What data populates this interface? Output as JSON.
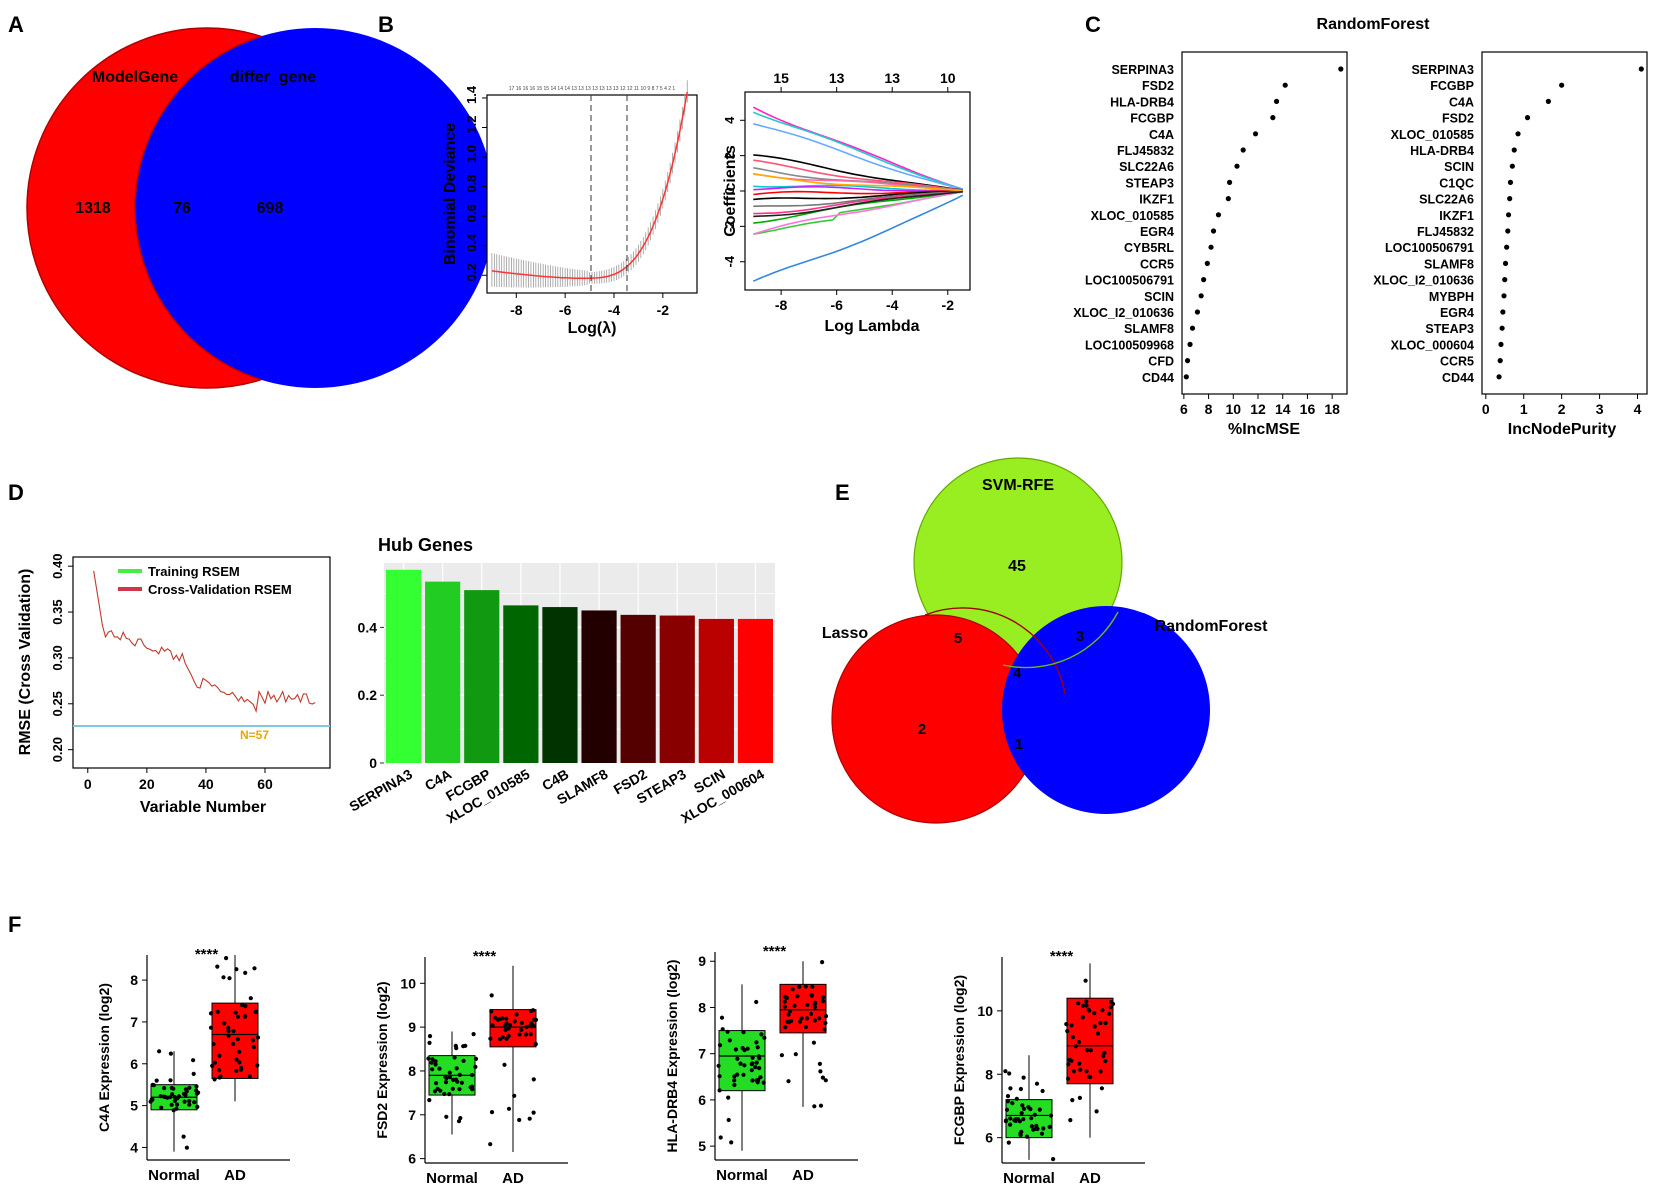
{
  "panels": {
    "A": {
      "label": "A",
      "venn": {
        "left_name": "ModelGene",
        "right_name": "differ_gene",
        "left_only": "1318",
        "overlap": "76",
        "right_only": "698",
        "colors": {
          "left": "#ff0000",
          "right": "#0000ff"
        }
      }
    },
    "B": {
      "label": "B",
      "cv_plot": {
        "ylabel": "Binomial Deviance",
        "xlabel": "Log(λ)",
        "yticks": [
          "0.2",
          "0.4",
          "0.6",
          "0.8",
          "1.0",
          "1.2",
          "1.4"
        ],
        "xticks": [
          "-8",
          "-6",
          "-4",
          "-2"
        ],
        "top_counts": "17 16 16 16 15 15 14 14 14 13 13 13 13 13 13 13 12 12 11 10 9 8 7 5 4 2 1"
      },
      "path_plot": {
        "ylabel": "Coefficients",
        "xlabel": "Log Lambda",
        "top_ticks": [
          "15",
          "13",
          "13",
          "10"
        ],
        "yticks": [
          "-4",
          "-2",
          "0",
          "2",
          "4"
        ],
        "xticks": [
          "-8",
          "-6",
          "-4",
          "-2"
        ]
      }
    },
    "C": {
      "label": "C",
      "title": "RandomForest",
      "left": {
        "xlabel": "%IncMSE",
        "xticks": [
          "6",
          "8",
          "10",
          "12",
          "14",
          "16",
          "18"
        ],
        "genes": [
          "SERPINA3",
          "FSD2",
          "HLA-DRB4",
          "FCGBP",
          "C4A",
          "FLJ45832",
          "SLC22A6",
          "STEAP3",
          "IKZF1",
          "XLOC_010585",
          "EGR4",
          "CYB5RL",
          "CCR5",
          "LOC100506791",
          "SCIN",
          "XLOC_I2_010636",
          "SLAMF8",
          "LOC100509968",
          "CFD",
          "CD44"
        ],
        "values": [
          18.7,
          14.2,
          13.5,
          13.2,
          11.8,
          10.8,
          10.3,
          9.7,
          9.6,
          8.8,
          8.4,
          8.2,
          7.9,
          7.6,
          7.4,
          7.1,
          6.7,
          6.5,
          6.3,
          6.2
        ]
      },
      "right": {
        "xlabel": "IncNodePurity",
        "xticks": [
          "0",
          "1",
          "2",
          "3",
          "4"
        ],
        "genes": [
          "SERPINA3",
          "FCGBP",
          "C4A",
          "FSD2",
          "XLOC_010585",
          "HLA-DRB4",
          "SCIN",
          "C1QC",
          "SLC22A6",
          "IKZF1",
          "FLJ45832",
          "LOC100506791",
          "SLAMF8",
          "XLOC_I2_010636",
          "MYBPH",
          "EGR4",
          "STEAP3",
          "XLOC_000604",
          "CCR5",
          "CD44"
        ],
        "values": [
          4.1,
          2.0,
          1.65,
          1.1,
          0.85,
          0.75,
          0.7,
          0.65,
          0.63,
          0.6,
          0.58,
          0.55,
          0.52,
          0.5,
          0.48,
          0.45,
          0.43,
          0.4,
          0.38,
          0.35
        ]
      }
    },
    "D": {
      "label": "D",
      "rmse": {
        "ylabel": "RMSE (Cross Validation)",
        "xlabel": "Variable Number",
        "yticks": [
          "0.20",
          "0.25",
          "0.30",
          "0.35",
          "0.40"
        ],
        "xticks": [
          "0",
          "20",
          "40",
          "60"
        ],
        "legend_train": "Training RSEM",
        "legend_cv": "Cross-Validation RSEM",
        "annotation": "N=57"
      },
      "hub": {
        "title": "Hub Genes",
        "yticks": [
          "0",
          "0.2",
          "0.4"
        ],
        "genes": [
          "SERPINA3",
          "C4A",
          "FCGBP",
          "XLOC_010585",
          "C4B",
          "SLAMF8",
          "FSD2",
          "STEAP3",
          "SCIN",
          "XLOC_000604"
        ],
        "values": [
          0.57,
          0.535,
          0.51,
          0.465,
          0.46,
          0.45,
          0.437,
          0.435,
          0.425,
          0.425
        ],
        "colors": [
          "#33ff33",
          "#22cc22",
          "#119911",
          "#006600",
          "#003300",
          "#220000",
          "#550000",
          "#880000",
          "#bb0000",
          "#ff0000"
        ]
      }
    },
    "E": {
      "label": "E",
      "venn": {
        "top_name": "SVM-RFE",
        "left_name": "Lasso",
        "right_name": "RandomForest",
        "top_only": "45",
        "top_left": "5",
        "top_right": "3",
        "center": "4",
        "left_only": "2",
        "left_right": "1",
        "colors": {
          "top": "#99ee22",
          "left": "#ff0000",
          "right": "#0000ff"
        }
      }
    },
    "F": {
      "label": "F",
      "group_normal": "Normal",
      "group_ad": "AD",
      "sig": "****",
      "plots": [
        {
          "ylabel": "C4A Expression (log2)",
          "yticks": [
            "4",
            "5",
            "6",
            "7",
            "8"
          ]
        },
        {
          "ylabel": "FSD2 Expression (log2)",
          "yticks": [
            "6",
            "7",
            "8",
            "9",
            "10"
          ]
        },
        {
          "ylabel": "HLA-DRB4 Expression (log2)",
          "yticks": [
            "5",
            "6",
            "7",
            "8",
            "9"
          ]
        },
        {
          "ylabel": "FCGBP Expression (log2)",
          "yticks": [
            "6",
            "8",
            "10"
          ]
        }
      ]
    }
  },
  "chart_data": [
    {
      "type": "scatter",
      "title": "RandomForest",
      "xlabel": "%IncMSE",
      "xlim": [
        6,
        19
      ],
      "categories": [
        "SERPINA3",
        "FSD2",
        "HLA-DRB4",
        "FCGBP",
        "C4A",
        "FLJ45832",
        "SLC22A6",
        "STEAP3",
        "IKZF1",
        "XLOC_010585",
        "EGR4",
        "CYB5RL",
        "CCR5",
        "LOC100506791",
        "SCIN",
        "XLOC_I2_010636",
        "SLAMF8",
        "LOC100509968",
        "CFD",
        "CD44"
      ],
      "values": [
        18.7,
        14.2,
        13.5,
        13.2,
        11.8,
        10.8,
        10.3,
        9.7,
        9.6,
        8.8,
        8.4,
        8.2,
        7.9,
        7.6,
        7.4,
        7.1,
        6.7,
        6.5,
        6.3,
        6.2
      ]
    },
    {
      "type": "scatter",
      "title": "RandomForest",
      "xlabel": "IncNodePurity",
      "xlim": [
        0,
        4.2
      ],
      "categories": [
        "SERPINA3",
        "FCGBP",
        "C4A",
        "FSD2",
        "XLOC_010585",
        "HLA-DRB4",
        "SCIN",
        "C1QC",
        "SLC22A6",
        "IKZF1",
        "FLJ45832",
        "LOC100506791",
        "SLAMF8",
        "XLOC_I2_010636",
        "MYBPH",
        "EGR4",
        "STEAP3",
        "XLOC_000604",
        "CCR5",
        "CD44"
      ],
      "values": [
        4.1,
        2.0,
        1.65,
        1.1,
        0.85,
        0.75,
        0.7,
        0.65,
        0.63,
        0.6,
        0.58,
        0.55,
        0.52,
        0.5,
        0.48,
        0.45,
        0.43,
        0.4,
        0.38,
        0.35
      ]
    },
    {
      "type": "bar",
      "title": "Hub Genes",
      "ylim": [
        0,
        0.59
      ],
      "categories": [
        "SERPINA3",
        "C4A",
        "FCGBP",
        "XLOC_010585",
        "C4B",
        "SLAMF8",
        "FSD2",
        "STEAP3",
        "SCIN",
        "XLOC_000604"
      ],
      "values": [
        0.57,
        0.535,
        0.51,
        0.465,
        0.46,
        0.45,
        0.437,
        0.435,
        0.425,
        0.425
      ]
    }
  ]
}
